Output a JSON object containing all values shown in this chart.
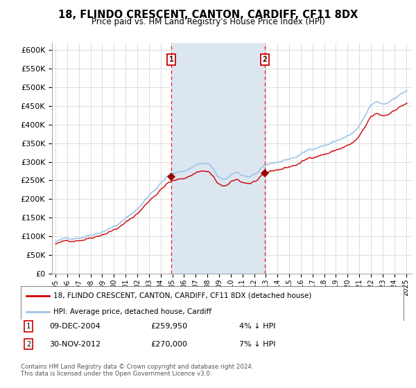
{
  "title": "18, FLINDO CRESCENT, CANTON, CARDIFF, CF11 8DX",
  "subtitle": "Price paid vs. HM Land Registry's House Price Index (HPI)",
  "ylim": [
    0,
    620000
  ],
  "sale1_date_num": 2004.92,
  "sale1_price": 259950,
  "sale2_date_num": 2012.91,
  "sale2_price": 270000,
  "legend_line1": "18, FLINDO CRESCENT, CANTON, CARDIFF, CF11 8DX (detached house)",
  "legend_line2": "HPI: Average price, detached house, Cardiff",
  "ann1_date": "09-DEC-2004",
  "ann1_price": "£259,950",
  "ann1_hpi": "4% ↓ HPI",
  "ann2_date": "30-NOV-2012",
  "ann2_price": "£270,000",
  "ann2_hpi": "7% ↓ HPI",
  "footnote_line1": "Contains HM Land Registry data © Crown copyright and database right 2024.",
  "footnote_line2": "This data is licensed under the Open Government Licence v3.0.",
  "hpi_color": "#9fc5e8",
  "price_color": "#cc0000",
  "vline_color": "#ff0000",
  "span_color": "#dce6f1",
  "marker_color": "#990000"
}
